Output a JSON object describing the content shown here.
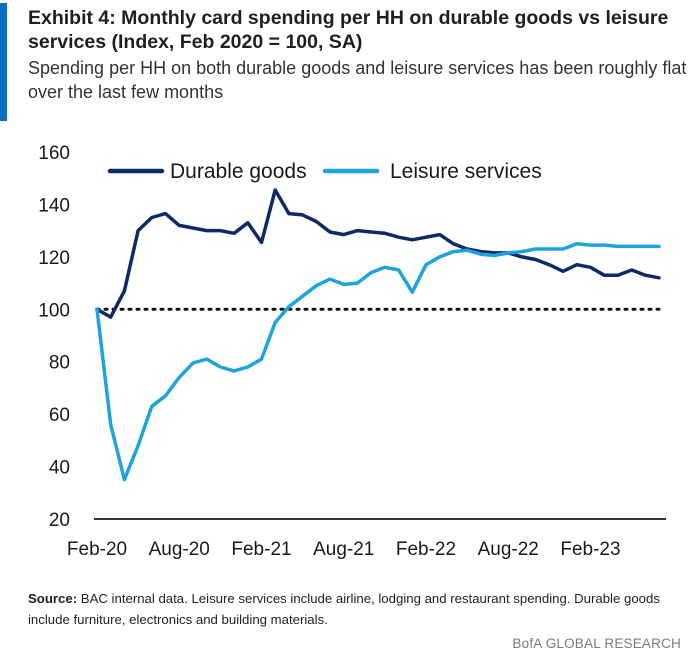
{
  "header": {
    "title": "Exhibit 4: Monthly card spending per HH on durable goods vs leisure services (Index, Feb 2020 = 100, SA)",
    "subtitle": "Spending per HH on both durable goods and leisure services has been roughly flat over the last few months"
  },
  "colors": {
    "accent": "#0a6fc2",
    "durable": "#0d2a66",
    "leisure": "#1fa3dc",
    "reference": "#111111"
  },
  "footer": {
    "source_key": "Source:",
    "source_text": "BAC internal data. Leisure services include airline, lodging and restaurant spending. Durable goods include furniture, electronics and building materials."
  },
  "brand": "BofA GLOBAL RESEARCH",
  "chart_data": {
    "type": "line",
    "title": "Exhibit 4: Monthly card spending per HH on durable goods vs leisure services (Index, Feb 2020 = 100, SA)",
    "xlabel": "",
    "ylabel": "",
    "x": [
      "2020-02",
      "2020-03",
      "2020-04",
      "2020-05",
      "2020-06",
      "2020-07",
      "2020-08",
      "2020-09",
      "2020-10",
      "2020-11",
      "2020-12",
      "2021-01",
      "2021-02",
      "2021-03",
      "2021-04",
      "2021-05",
      "2021-06",
      "2021-07",
      "2021-08",
      "2021-09",
      "2021-10",
      "2021-11",
      "2021-12",
      "2022-01",
      "2022-02",
      "2022-03",
      "2022-04",
      "2022-05",
      "2022-06",
      "2022-07",
      "2022-08",
      "2022-09",
      "2022-10",
      "2022-11",
      "2022-12",
      "2023-01",
      "2023-02",
      "2023-03",
      "2023-04",
      "2023-05",
      "2023-06",
      "2023-07"
    ],
    "x_tick_labels": [
      "Feb-20",
      "Aug-20",
      "Feb-21",
      "Aug-21",
      "Feb-22",
      "Aug-22",
      "Feb-23"
    ],
    "x_tick_months": [
      "2020-02",
      "2020-08",
      "2021-02",
      "2021-08",
      "2022-02",
      "2022-08",
      "2023-02"
    ],
    "ylim": [
      20,
      160
    ],
    "y_ticks": [
      20,
      40,
      60,
      80,
      100,
      120,
      140,
      160
    ],
    "reference_line": {
      "y": 100,
      "style": "dotted"
    },
    "grid": false,
    "legend": {
      "position": "top",
      "orientation": "horizontal"
    },
    "series": [
      {
        "name": "Durable goods",
        "color": "#0d2a66",
        "values": [
          100,
          97,
          107,
          130,
          135,
          136.5,
          132,
          131,
          130,
          130,
          129,
          133,
          125.5,
          145.5,
          136.5,
          136,
          133.5,
          129.5,
          128.5,
          130,
          129.5,
          129,
          127.5,
          126.5,
          127.5,
          128.5,
          125,
          123,
          122,
          121.5,
          121.5,
          120,
          119,
          117,
          114.5,
          117,
          116,
          113,
          113,
          115,
          113,
          112
        ]
      },
      {
        "name": "Leisure services",
        "color": "#1fa3dc",
        "values": [
          100,
          56,
          35,
          48,
          63,
          67,
          74,
          79.5,
          81,
          78,
          76.5,
          78,
          81,
          95,
          101,
          105,
          109,
          111.5,
          109.5,
          110,
          114,
          116,
          115,
          106.5,
          117,
          120,
          122,
          122.5,
          121,
          120.5,
          121.5,
          122,
          123,
          123,
          123,
          125,
          124.5,
          124.5,
          124,
          124,
          124,
          124
        ]
      }
    ]
  }
}
